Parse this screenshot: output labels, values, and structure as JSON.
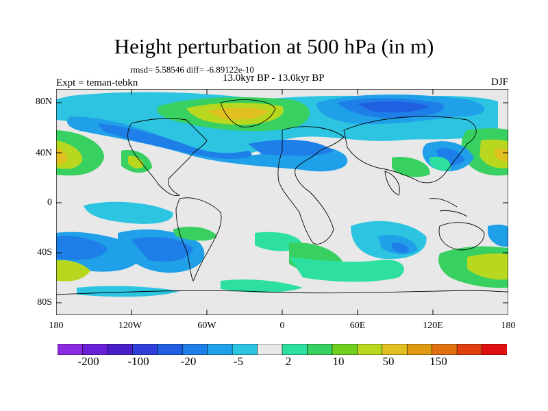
{
  "figure": {
    "title": "Height perturbation at 500 hPa (in m)",
    "stats_line": "rmsd= 5.58546 diff= -6.89122e-10",
    "period": "13.0kyr BP - 13.0kyr BP",
    "experiment": "Expt = teman-tebkn",
    "season": "DJF"
  },
  "axes": {
    "lat_labels": [
      "80N",
      "40N",
      "0",
      "40S",
      "80S"
    ],
    "lon_labels": [
      "180",
      "120W",
      "60W",
      "0",
      "60E",
      "120E",
      "180"
    ]
  },
  "colorbar": {
    "colors": [
      "#8a2be2",
      "#6a1fd8",
      "#4b1fc8",
      "#2f3fd8",
      "#1f5fe0",
      "#1f7fe8",
      "#1fa0e8",
      "#2cc4e0",
      "#e8e8e8",
      "#2ee0a0",
      "#38d060",
      "#70d020",
      "#b8d820",
      "#e0c020",
      "#e09a10",
      "#e07010",
      "#e04010",
      "#e01010"
    ],
    "tick_labels": [
      "-200",
      "-100",
      "-20",
      "-5",
      "2",
      "10",
      "50",
      "150"
    ],
    "levels": [
      -200,
      -100,
      -20,
      -5,
      2,
      10,
      50,
      150
    ]
  }
}
